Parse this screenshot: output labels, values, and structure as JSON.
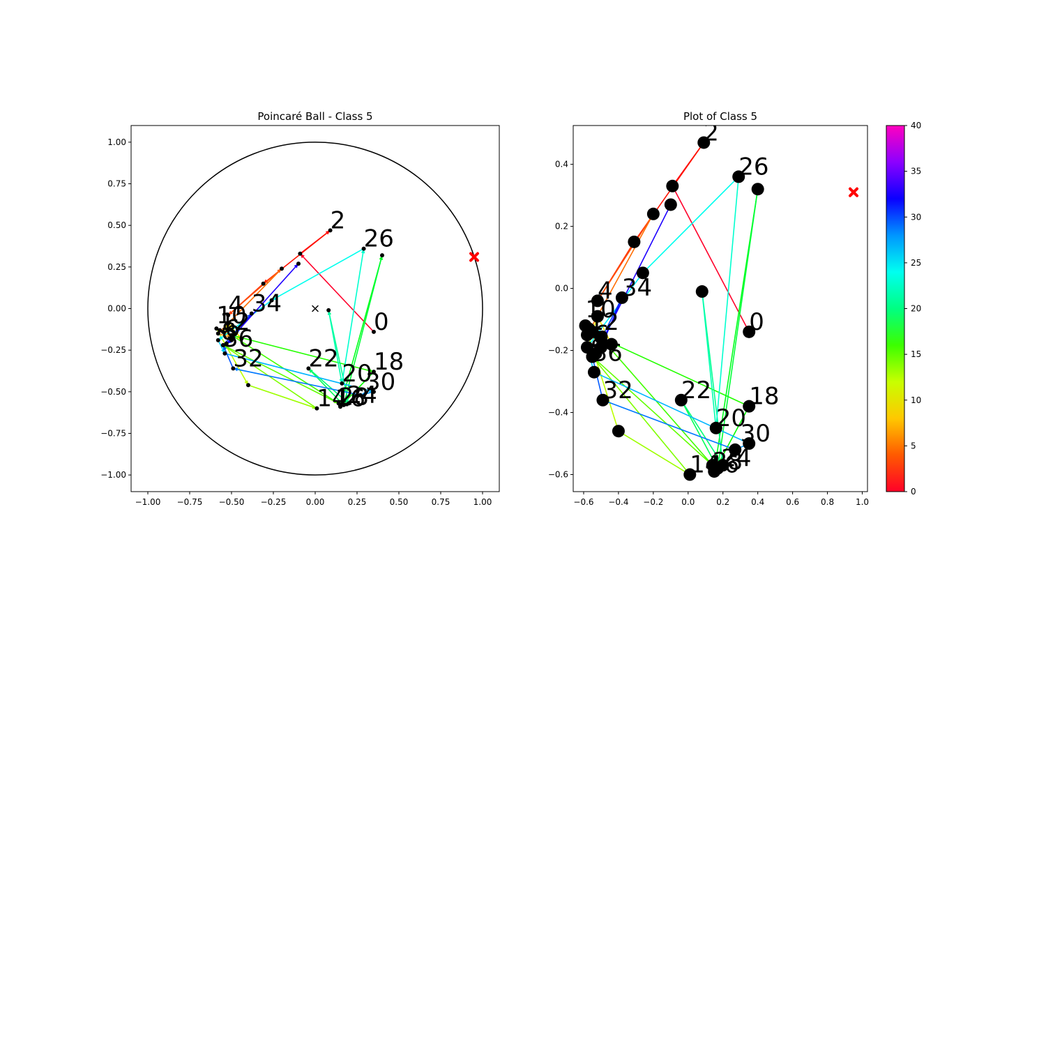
{
  "chart_data": [
    {
      "type": "scatter",
      "title": "Poincaré Ball - Class 5",
      "xlabel": "",
      "ylabel": "",
      "xlim": [
        -1.1,
        1.1
      ],
      "ylim": [
        -1.1,
        1.1
      ],
      "xticks": [
        "−1.00",
        "−0.75",
        "−0.50",
        "−0.25",
        "0.00",
        "0.25",
        "0.50",
        "0.75",
        "1.00"
      ],
      "yticks": [
        "−1.00",
        "−0.75",
        "−0.50",
        "−0.25",
        "0.00",
        "0.25",
        "0.50",
        "0.75",
        "1.00"
      ],
      "unit_circle": true,
      "origin_marker": "x",
      "target_marker": {
        "x": 0.95,
        "y": 0.31,
        "color": "#ff0000"
      },
      "path": [
        {
          "step": 0,
          "x": 0.35,
          "y": -0.14
        },
        {
          "step": 1,
          "x": -0.09,
          "y": 0.33
        },
        {
          "step": 2,
          "x": 0.09,
          "y": 0.47
        },
        {
          "step": 3,
          "x": -0.31,
          "y": 0.15
        },
        {
          "step": 4,
          "x": -0.52,
          "y": -0.04
        },
        {
          "step": 5,
          "x": -0.2,
          "y": 0.24
        },
        {
          "step": 6,
          "x": -0.58,
          "y": -0.15
        },
        {
          "step": 7,
          "x": -0.49,
          "y": -0.18
        },
        {
          "step": 8,
          "x": -0.57,
          "y": -0.13
        },
        {
          "step": 9,
          "x": -0.44,
          "y": -0.18
        },
        {
          "step": 10,
          "x": -0.52,
          "y": -0.09
        },
        {
          "step": 11,
          "x": -0.55,
          "y": -0.14
        },
        {
          "step": 12,
          "x": -0.59,
          "y": -0.12
        },
        {
          "step": 13,
          "x": -0.4,
          "y": -0.46
        },
        {
          "step": 14,
          "x": 0.01,
          "y": -0.6
        },
        {
          "step": 15,
          "x": -0.55,
          "y": -0.22
        },
        {
          "step": 16,
          "x": 0.14,
          "y": -0.57
        },
        {
          "step": 17,
          "x": -0.5,
          "y": -0.16
        },
        {
          "step": 18,
          "x": 0.35,
          "y": -0.38
        },
        {
          "step": 19,
          "x": 0.15,
          "y": -0.59
        },
        {
          "step": 20,
          "x": 0.4,
          "y": 0.32
        },
        {
          "step": 21,
          "x": 0.17,
          "y": -0.58
        },
        {
          "step": 22,
          "x": -0.04,
          "y": -0.36
        },
        {
          "step": 23,
          "x": 0.2,
          "y": -0.57
        },
        {
          "step": 24,
          "x": 0.08,
          "y": -0.01
        },
        {
          "step": 25,
          "x": 0.16,
          "y": -0.45
        },
        {
          "step": 26,
          "x": 0.29,
          "y": 0.36
        },
        {
          "step": 27,
          "x": -0.26,
          "y": 0.05
        },
        {
          "step": 28,
          "x": -0.58,
          "y": -0.19
        },
        {
          "step": 29,
          "x": -0.54,
          "y": -0.27
        },
        {
          "step": 30,
          "x": 0.35,
          "y": -0.5
        },
        {
          "step": 31,
          "x": 0.27,
          "y": -0.52
        },
        {
          "step": 32,
          "x": -0.49,
          "y": -0.36
        },
        {
          "step": 33,
          "x": -0.55,
          "y": -0.22
        },
        {
          "step": 34,
          "x": -0.38,
          "y": -0.03
        },
        {
          "step": 35,
          "x": -0.5,
          "y": -0.19
        },
        {
          "step": 36,
          "x": -0.53,
          "y": -0.21
        },
        {
          "step": 37,
          "x": -0.1,
          "y": 0.27
        }
      ],
      "labels": [
        {
          "text": "0",
          "x": 0.35,
          "y": -0.14
        },
        {
          "text": "2",
          "x": 0.09,
          "y": 0.47
        },
        {
          "text": "4",
          "x": -0.52,
          "y": -0.04
        },
        {
          "text": "10",
          "x": -0.59,
          "y": -0.1
        },
        {
          "text": "12",
          "x": -0.57,
          "y": -0.14
        },
        {
          "text": "6",
          "x": -0.54,
          "y": -0.18
        },
        {
          "text": "8",
          "x": -0.56,
          "y": -0.2
        },
        {
          "text": "36",
          "x": -0.55,
          "y": -0.24
        },
        {
          "text": "14",
          "x": 0.01,
          "y": -0.6
        },
        {
          "text": "16",
          "x": 0.12,
          "y": -0.6
        },
        {
          "text": "18",
          "x": 0.35,
          "y": -0.38
        },
        {
          "text": "20",
          "x": 0.16,
          "y": -0.45
        },
        {
          "text": "22",
          "x": -0.04,
          "y": -0.36
        },
        {
          "text": "24",
          "x": 0.19,
          "y": -0.58
        },
        {
          "text": "26",
          "x": 0.29,
          "y": 0.36
        },
        {
          "text": "28",
          "x": 0.14,
          "y": -0.59
        },
        {
          "text": "30",
          "x": 0.3,
          "y": -0.5
        },
        {
          "text": "32",
          "x": -0.49,
          "y": -0.36
        },
        {
          "text": "34",
          "x": -0.38,
          "y": -0.03
        }
      ]
    },
    {
      "type": "scatter",
      "title": "Plot of Class 5",
      "xlabel": "",
      "ylabel": "",
      "xlim": [
        -0.66,
        1.03
      ],
      "ylim": [
        -0.655,
        0.525
      ],
      "xticks": [
        "−0.6",
        "−0.4",
        "−0.2",
        "0.0",
        "0.2",
        "0.4",
        "0.6",
        "0.8",
        "1.0"
      ],
      "yticks": [
        "−0.6",
        "−0.4",
        "−0.2",
        "0.0",
        "0.2",
        "0.4"
      ],
      "colorbar": {
        "min": 0,
        "max": 40,
        "ticks": [
          "0",
          "5",
          "10",
          "15",
          "20",
          "25",
          "30",
          "35",
          "40"
        ],
        "colormap": "gist_rainbow"
      },
      "target_marker": {
        "x": 0.95,
        "y": 0.31,
        "color": "#ff0000"
      }
    }
  ]
}
